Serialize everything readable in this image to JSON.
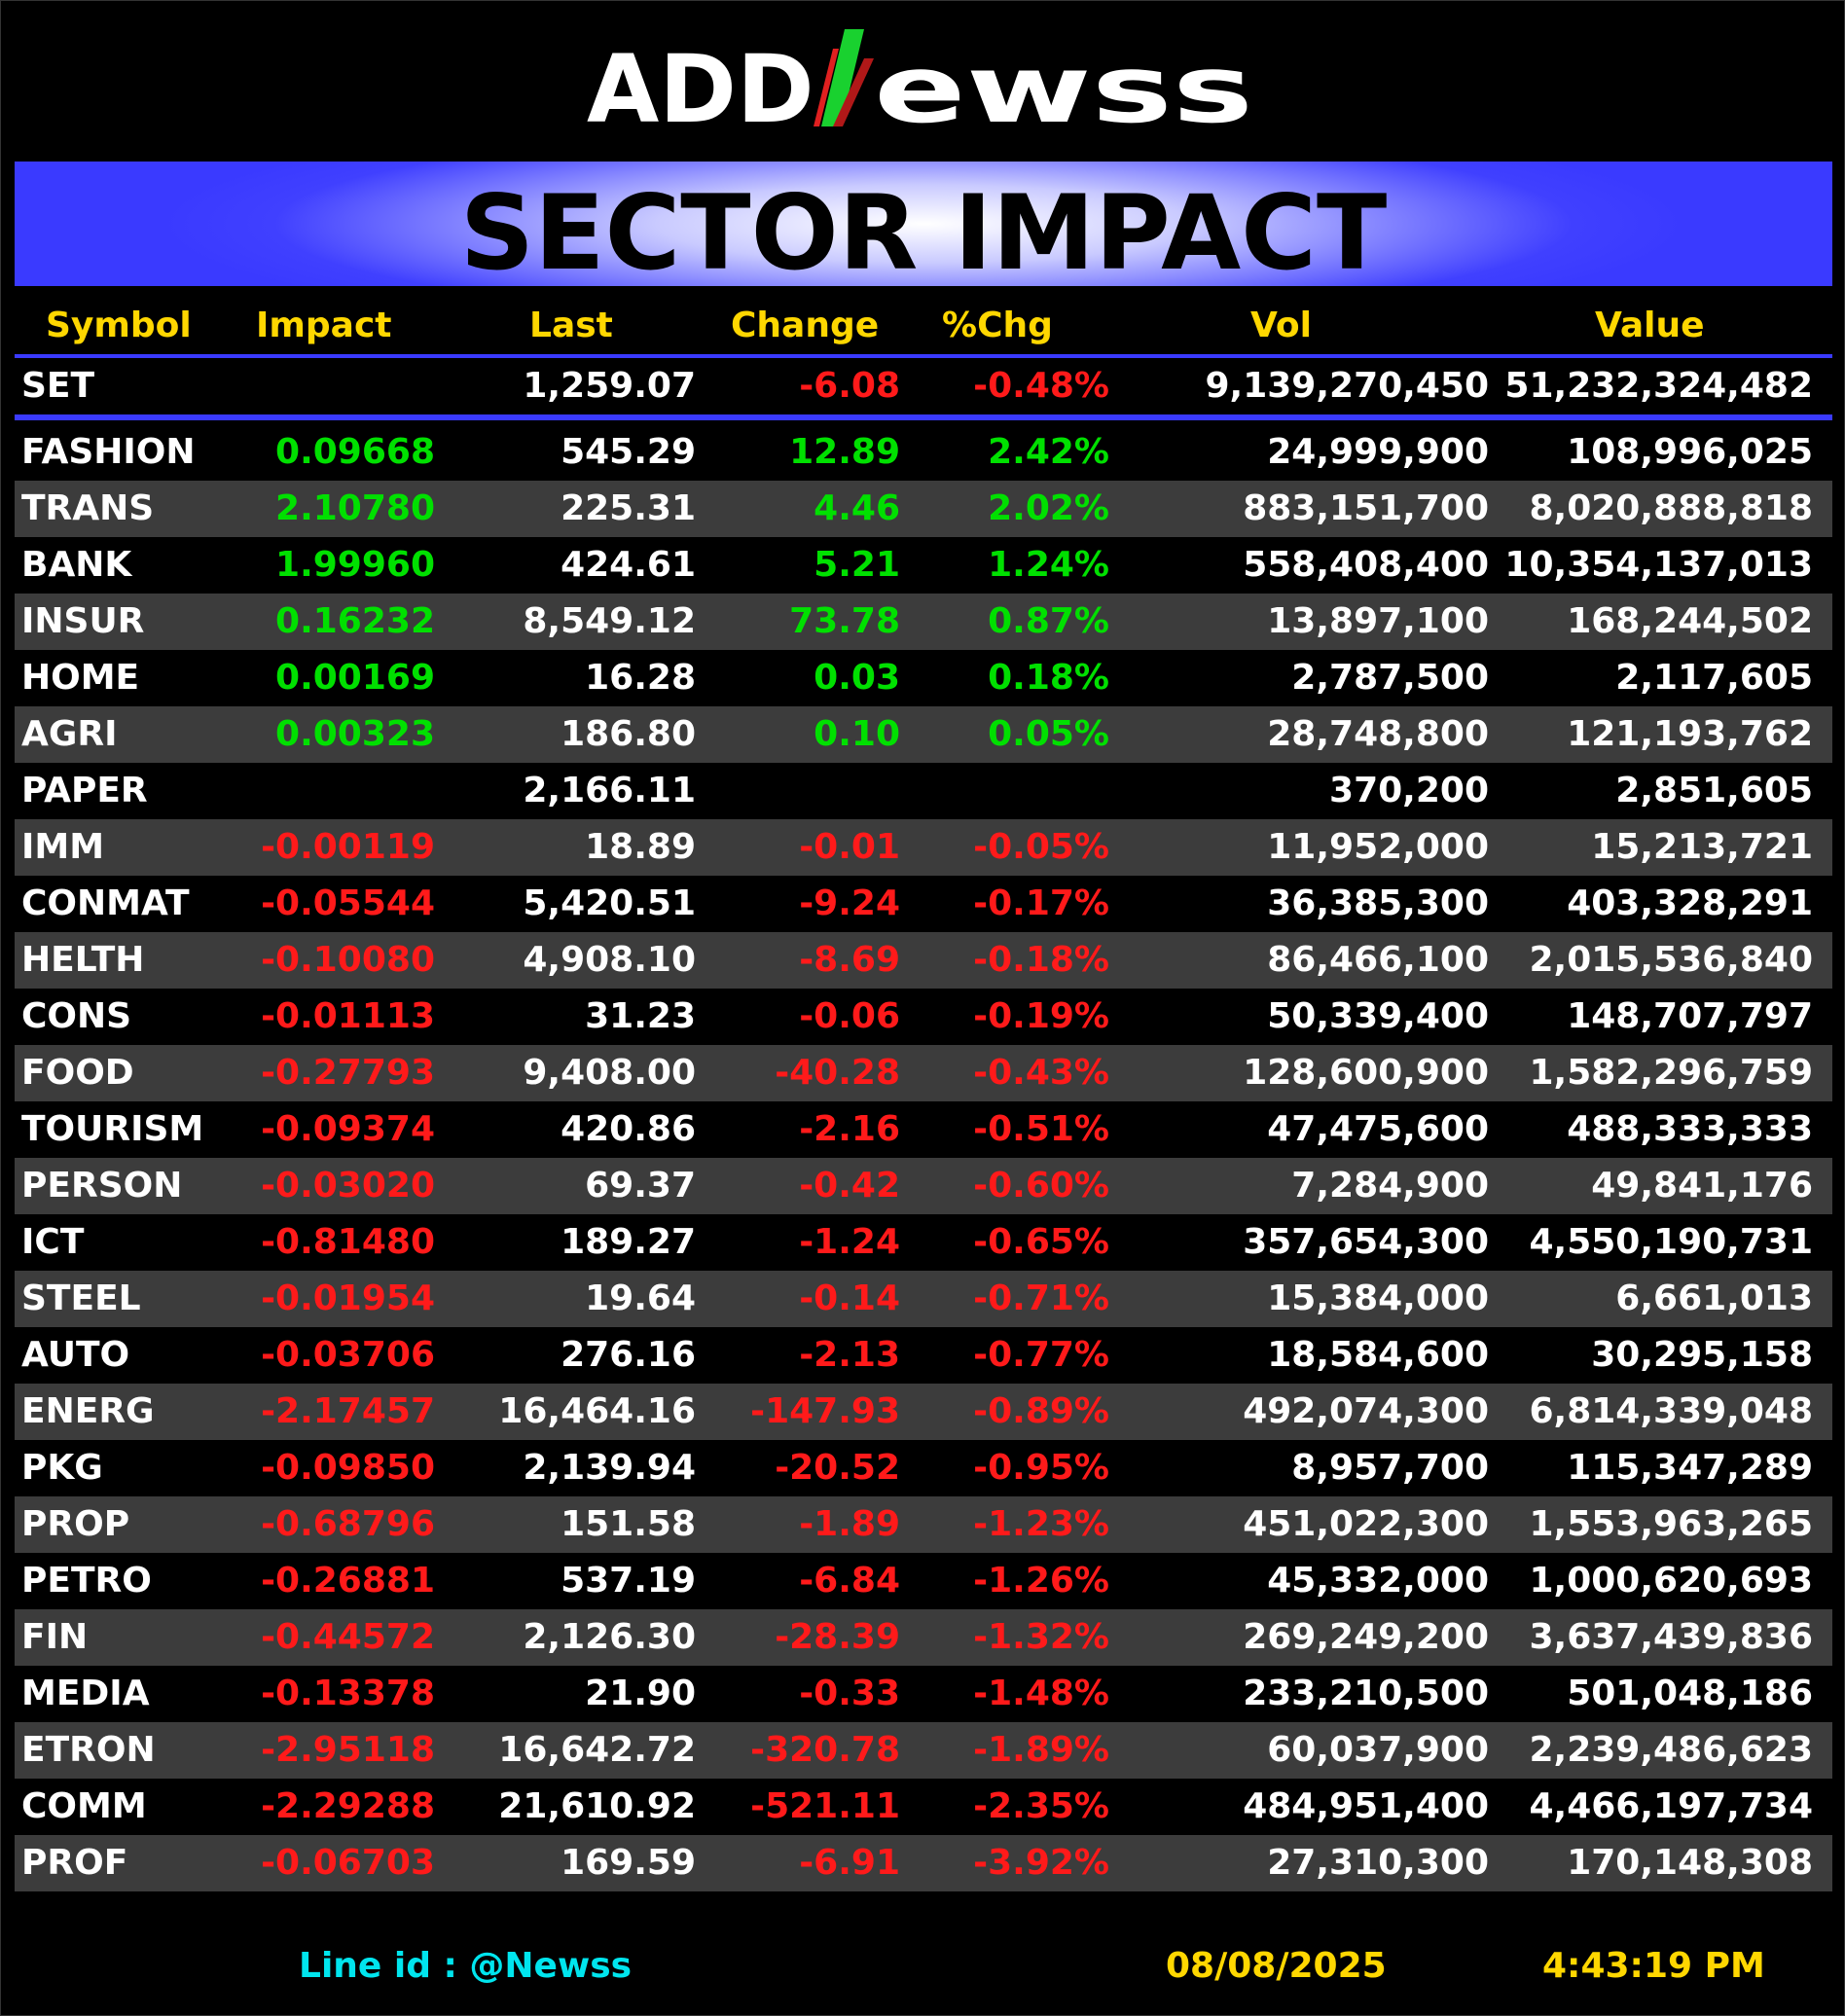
{
  "brand": {
    "part1": "ADD",
    "part2": "Newss",
    "colors": {
      "white": "#ffffff",
      "green": "#19d12f",
      "red": "#e02020"
    }
  },
  "title": "SECTOR IMPACT",
  "headers": [
    "Symbol",
    "Impact",
    "Last",
    "Change",
    "%Chg",
    "Vol",
    "Value"
  ],
  "index_row": {
    "symbol": "SET",
    "impact": "",
    "last": "1,259.07",
    "change": "-6.08",
    "pct": "-0.48%",
    "vol": "9,139,270,450",
    "value": "51,232,324,482",
    "dir": "neg"
  },
  "rows": [
    {
      "symbol": "FASHION",
      "impact": "0.09668",
      "last": "545.29",
      "change": "12.89",
      "pct": "2.42%",
      "vol": "24,999,900",
      "value": "108,996,025",
      "dir": "pos"
    },
    {
      "symbol": "TRANS",
      "impact": "2.10780",
      "last": "225.31",
      "change": "4.46",
      "pct": "2.02%",
      "vol": "883,151,700",
      "value": "8,020,888,818",
      "dir": "pos"
    },
    {
      "symbol": "BANK",
      "impact": "1.99960",
      "last": "424.61",
      "change": "5.21",
      "pct": "1.24%",
      "vol": "558,408,400",
      "value": "10,354,137,013",
      "dir": "pos"
    },
    {
      "symbol": "INSUR",
      "impact": "0.16232",
      "last": "8,549.12",
      "change": "73.78",
      "pct": "0.87%",
      "vol": "13,897,100",
      "value": "168,244,502",
      "dir": "pos"
    },
    {
      "symbol": "HOME",
      "impact": "0.00169",
      "last": "16.28",
      "change": "0.03",
      "pct": "0.18%",
      "vol": "2,787,500",
      "value": "2,117,605",
      "dir": "pos"
    },
    {
      "symbol": "AGRI",
      "impact": "0.00323",
      "last": "186.80",
      "change": "0.10",
      "pct": "0.05%",
      "vol": "28,748,800",
      "value": "121,193,762",
      "dir": "pos"
    },
    {
      "symbol": "PAPER",
      "impact": "",
      "last": "2,166.11",
      "change": "",
      "pct": "",
      "vol": "370,200",
      "value": "2,851,605",
      "dir": "none"
    },
    {
      "symbol": "IMM",
      "impact": "-0.00119",
      "last": "18.89",
      "change": "-0.01",
      "pct": "-0.05%",
      "vol": "11,952,000",
      "value": "15,213,721",
      "dir": "neg"
    },
    {
      "symbol": "CONMAT",
      "impact": "-0.05544",
      "last": "5,420.51",
      "change": "-9.24",
      "pct": "-0.17%",
      "vol": "36,385,300",
      "value": "403,328,291",
      "dir": "neg"
    },
    {
      "symbol": "HELTH",
      "impact": "-0.10080",
      "last": "4,908.10",
      "change": "-8.69",
      "pct": "-0.18%",
      "vol": "86,466,100",
      "value": "2,015,536,840",
      "dir": "neg"
    },
    {
      "symbol": "CONS",
      "impact": "-0.01113",
      "last": "31.23",
      "change": "-0.06",
      "pct": "-0.19%",
      "vol": "50,339,400",
      "value": "148,707,797",
      "dir": "neg"
    },
    {
      "symbol": "FOOD",
      "impact": "-0.27793",
      "last": "9,408.00",
      "change": "-40.28",
      "pct": "-0.43%",
      "vol": "128,600,900",
      "value": "1,582,296,759",
      "dir": "neg"
    },
    {
      "symbol": "TOURISM",
      "impact": "-0.09374",
      "last": "420.86",
      "change": "-2.16",
      "pct": "-0.51%",
      "vol": "47,475,600",
      "value": "488,333,333",
      "dir": "neg"
    },
    {
      "symbol": "PERSON",
      "impact": "-0.03020",
      "last": "69.37",
      "change": "-0.42",
      "pct": "-0.60%",
      "vol": "7,284,900",
      "value": "49,841,176",
      "dir": "neg"
    },
    {
      "symbol": "ICT",
      "impact": "-0.81480",
      "last": "189.27",
      "change": "-1.24",
      "pct": "-0.65%",
      "vol": "357,654,300",
      "value": "4,550,190,731",
      "dir": "neg"
    },
    {
      "symbol": "STEEL",
      "impact": "-0.01954",
      "last": "19.64",
      "change": "-0.14",
      "pct": "-0.71%",
      "vol": "15,384,000",
      "value": "6,661,013",
      "dir": "neg"
    },
    {
      "symbol": "AUTO",
      "impact": "-0.03706",
      "last": "276.16",
      "change": "-2.13",
      "pct": "-0.77%",
      "vol": "18,584,600",
      "value": "30,295,158",
      "dir": "neg"
    },
    {
      "symbol": "ENERG",
      "impact": "-2.17457",
      "last": "16,464.16",
      "change": "-147.93",
      "pct": "-0.89%",
      "vol": "492,074,300",
      "value": "6,814,339,048",
      "dir": "neg"
    },
    {
      "symbol": "PKG",
      "impact": "-0.09850",
      "last": "2,139.94",
      "change": "-20.52",
      "pct": "-0.95%",
      "vol": "8,957,700",
      "value": "115,347,289",
      "dir": "neg"
    },
    {
      "symbol": "PROP",
      "impact": "-0.68796",
      "last": "151.58",
      "change": "-1.89",
      "pct": "-1.23%",
      "vol": "451,022,300",
      "value": "1,553,963,265",
      "dir": "neg"
    },
    {
      "symbol": "PETRO",
      "impact": "-0.26881",
      "last": "537.19",
      "change": "-6.84",
      "pct": "-1.26%",
      "vol": "45,332,000",
      "value": "1,000,620,693",
      "dir": "neg"
    },
    {
      "symbol": "FIN",
      "impact": "-0.44572",
      "last": "2,126.30",
      "change": "-28.39",
      "pct": "-1.32%",
      "vol": "269,249,200",
      "value": "3,637,439,836",
      "dir": "neg"
    },
    {
      "symbol": "MEDIA",
      "impact": "-0.13378",
      "last": "21.90",
      "change": "-0.33",
      "pct": "-1.48%",
      "vol": "233,210,500",
      "value": "501,048,186",
      "dir": "neg"
    },
    {
      "symbol": "ETRON",
      "impact": "-2.95118",
      "last": "16,642.72",
      "change": "-320.78",
      "pct": "-1.89%",
      "vol": "60,037,900",
      "value": "2,239,486,623",
      "dir": "neg"
    },
    {
      "symbol": "COMM",
      "impact": "-2.29288",
      "last": "21,610.92",
      "change": "-521.11",
      "pct": "-2.35%",
      "vol": "484,951,400",
      "value": "4,466,197,734",
      "dir": "neg"
    },
    {
      "symbol": "PROF",
      "impact": "-0.06703",
      "last": "169.59",
      "change": "-6.91",
      "pct": "-3.92%",
      "vol": "27,310,300",
      "value": "170,148,308",
      "dir": "neg"
    }
  ],
  "footer": {
    "line_id": "Line id  : @Newss",
    "date": "08/08/2025",
    "time": "4:43:19 PM"
  }
}
